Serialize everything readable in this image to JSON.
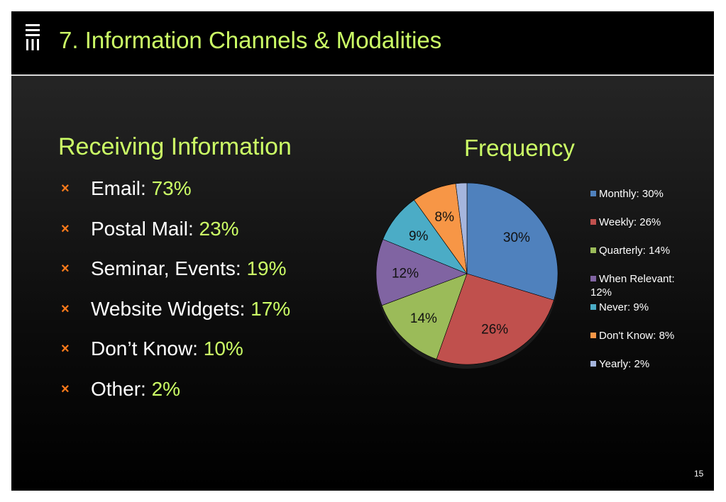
{
  "slide": {
    "title": "7. Information Channels & Modalities",
    "page_number": "15",
    "logo_icon": "logo-bars-icon"
  },
  "receiving": {
    "heading": "Receiving Information",
    "bullet_icon": "orange-x-bullet-icon",
    "items": [
      {
        "label": "Email: ",
        "value": "73%"
      },
      {
        "label": "Postal Mail: ",
        "value": "23%"
      },
      {
        "label": "Seminar, Events: ",
        "value": "19%"
      },
      {
        "label": "Website Widgets: ",
        "value": "17%"
      },
      {
        "label": "Don’t Know: ",
        "value": "10%"
      },
      {
        "label": "Other: ",
        "value": "2%"
      }
    ]
  },
  "colors": {
    "accent_green": "#ccff66",
    "bullet_orange": "#ff7a1a"
  },
  "chart_data": {
    "type": "pie",
    "title": "Frequency",
    "legend_position": "right",
    "slices": [
      {
        "name": "Monthly",
        "value": 30,
        "label": "30%",
        "legend": "Monthly: 30%",
        "color": "#4f81bd"
      },
      {
        "name": "Weekly",
        "value": 26,
        "label": "26%",
        "legend": "Weekly: 26%",
        "color": "#c0504d"
      },
      {
        "name": "Quarterly",
        "value": 14,
        "label": "14%",
        "legend": "Quarterly: 14%",
        "color": "#9bbb59"
      },
      {
        "name": "When Relevant",
        "value": 12,
        "label": "12%",
        "legend": "When Relevant: 12%",
        "color": "#8064a2"
      },
      {
        "name": "Never",
        "value": 9,
        "label": "9%",
        "legend": "Never: 9%",
        "color": "#4bacc6"
      },
      {
        "name": "Don't Know",
        "value": 8,
        "label": "8%",
        "legend": "Don't Know: 8%",
        "color": "#f79646"
      },
      {
        "name": "Yearly",
        "value": 2,
        "label": "",
        "legend": "Yearly: 2%",
        "color": "#a5b5dd"
      }
    ]
  }
}
